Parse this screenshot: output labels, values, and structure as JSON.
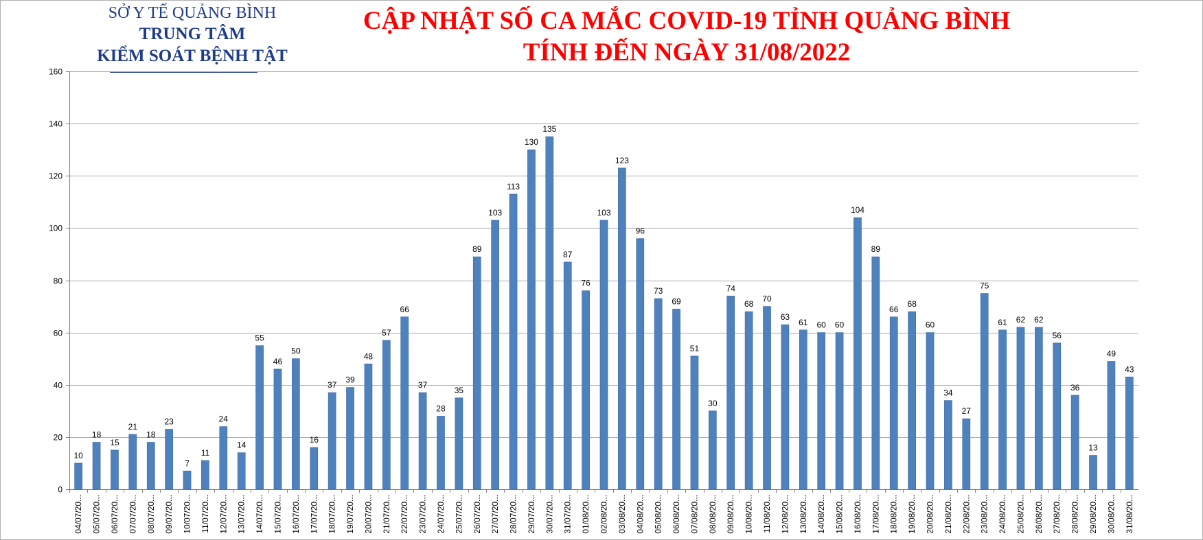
{
  "header": {
    "org_line1": "SỞ Y TẾ QUẢNG BÌNH",
    "org_line2": "TRUNG TÂM",
    "org_line3": "KIỂM SOÁT BỆNH TẬT",
    "title_line1": "CẬP NHẬT SỐ CA MẮC COVID-19 TỈNH QUẢNG BÌNH",
    "title_line2": "TÍNH ĐẾN NGÀY 31/08/2022"
  },
  "colors": {
    "bar": "#4f81bd",
    "bar_edge": "#3a6aa5",
    "grid": "#a6a6a6",
    "title": "#ff0000",
    "org": "#1f3c88"
  },
  "chart_data": {
    "type": "bar",
    "title": "",
    "xlabel": "",
    "ylabel": "",
    "ylim": [
      0,
      160
    ],
    "yticks": [
      0,
      20,
      40,
      60,
      80,
      100,
      120,
      140,
      160
    ],
    "grid": true,
    "legend": "none",
    "categories": [
      "04/07/20...",
      "05/07/20...",
      "06/07/20...",
      "07/07/20...",
      "08/07/20...",
      "09/07/20...",
      "10/07/20...",
      "11/07/20...",
      "12/07/20...",
      "13/07/20...",
      "14/07/20...",
      "15/07/20...",
      "16/07/20...",
      "17/07/20...",
      "18/07/20...",
      "19/07/20...",
      "20/07/20...",
      "21/07/20...",
      "22/07/20...",
      "23/07/20...",
      "24/07/20...",
      "25/07/20...",
      "26/07/20...",
      "27/07/20...",
      "28/07/20...",
      "29/07/20...",
      "30/07/20...",
      "31/07/20...",
      "01/08/20...",
      "02/08/20...",
      "03/08/20...",
      "04/08/20...",
      "05/08/20...",
      "06/08/20...",
      "07/08/20...",
      "08/08/20...",
      "09/08/20...",
      "10/08/20...",
      "11/08/20...",
      "12/08/20...",
      "13/08/20...",
      "14/08/20...",
      "15/08/20...",
      "16/08/20...",
      "17/08/20...",
      "18/08/20...",
      "19/08/20...",
      "20/08/20...",
      "21/08/20...",
      "22/08/20...",
      "23/08/20...",
      "24/08/20...",
      "25/08/20...",
      "26/08/20...",
      "27/08/20...",
      "28/08/20...",
      "29/08/20...",
      "30/08/20...",
      "31/08/20..."
    ],
    "values": [
      10,
      18,
      15,
      21,
      18,
      23,
      7,
      11,
      24,
      14,
      55,
      46,
      50,
      16,
      37,
      39,
      48,
      57,
      66,
      37,
      28,
      35,
      89,
      103,
      113,
      130,
      135,
      87,
      76,
      103,
      123,
      96,
      73,
      69,
      51,
      30,
      74,
      68,
      70,
      63,
      61,
      60,
      60,
      104,
      89,
      66,
      68,
      60,
      34,
      27,
      75,
      61,
      62,
      62,
      56,
      36,
      13,
      49,
      43
    ]
  }
}
